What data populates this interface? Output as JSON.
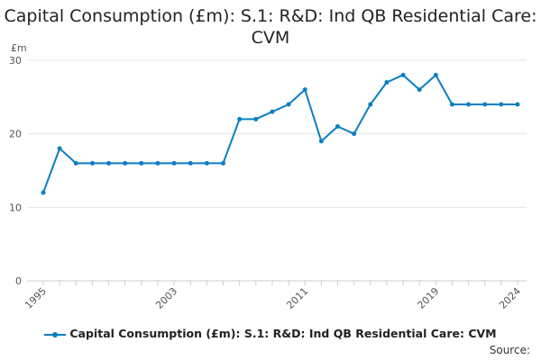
{
  "chart_data": {
    "type": "line",
    "title": "Capital Consumption (£m): S.1: R&D: Ind QB Residential Care: CVM",
    "ylabel": "£m",
    "xlabel": "",
    "x": [
      1995,
      1996,
      1997,
      1998,
      1999,
      2000,
      2001,
      2002,
      2003,
      2004,
      2005,
      2006,
      2007,
      2008,
      2009,
      2010,
      2011,
      2012,
      2013,
      2014,
      2015,
      2016,
      2017,
      2018,
      2019,
      2020,
      2021,
      2022,
      2023,
      2024
    ],
    "series": [
      {
        "name": "Capital Consumption (£m): S.1: R&D: Ind QB Residential Care: CVM",
        "values": [
          12,
          18,
          16,
          16,
          16,
          16,
          16,
          16,
          16,
          16,
          16,
          16,
          22,
          22,
          23,
          24,
          26,
          19,
          21,
          20,
          24,
          27,
          28,
          26,
          28,
          24,
          24,
          24,
          24,
          24
        ]
      }
    ],
    "xlim": [
      1995,
      2024
    ],
    "ylim": [
      0,
      30
    ],
    "yticks": [
      0,
      10,
      20,
      30
    ],
    "xticks": [
      1995,
      2003,
      2011,
      2019,
      2024
    ],
    "grid": true,
    "legend_position": "bottom",
    "color": "#0a7fc1"
  },
  "source_label": "Source:"
}
